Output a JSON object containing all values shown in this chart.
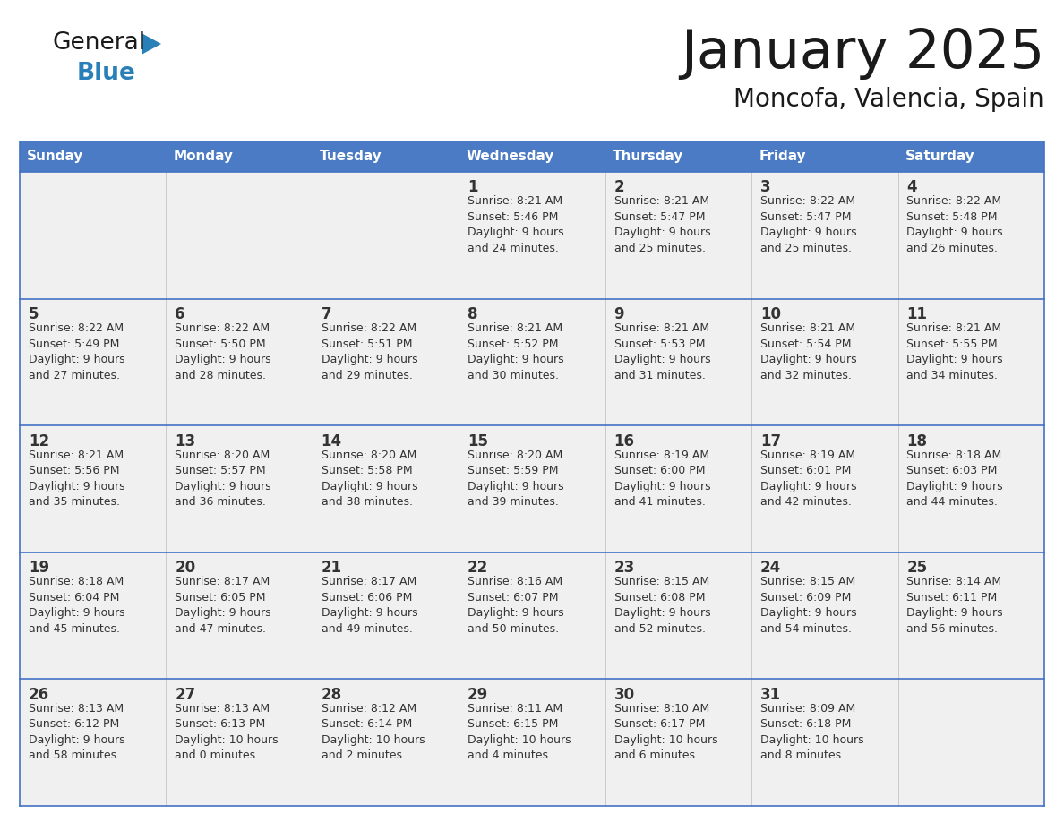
{
  "title": "January 2025",
  "subtitle": "Moncofa, Valencia, Spain",
  "header_bg_color": "#4A7BC4",
  "header_text_color": "#FFFFFF",
  "cell_bg": "#F0F0F0",
  "border_color": "#4472C4",
  "text_color": "#333333",
  "logo_text_color": "#1a1a1a",
  "logo_blue_color": "#2980B9",
  "days_of_week": [
    "Sunday",
    "Monday",
    "Tuesday",
    "Wednesday",
    "Thursday",
    "Friday",
    "Saturday"
  ],
  "weeks": [
    [
      {
        "day": "",
        "info": ""
      },
      {
        "day": "",
        "info": ""
      },
      {
        "day": "",
        "info": ""
      },
      {
        "day": "1",
        "info": "Sunrise: 8:21 AM\nSunset: 5:46 PM\nDaylight: 9 hours\nand 24 minutes."
      },
      {
        "day": "2",
        "info": "Sunrise: 8:21 AM\nSunset: 5:47 PM\nDaylight: 9 hours\nand 25 minutes."
      },
      {
        "day": "3",
        "info": "Sunrise: 8:22 AM\nSunset: 5:47 PM\nDaylight: 9 hours\nand 25 minutes."
      },
      {
        "day": "4",
        "info": "Sunrise: 8:22 AM\nSunset: 5:48 PM\nDaylight: 9 hours\nand 26 minutes."
      }
    ],
    [
      {
        "day": "5",
        "info": "Sunrise: 8:22 AM\nSunset: 5:49 PM\nDaylight: 9 hours\nand 27 minutes."
      },
      {
        "day": "6",
        "info": "Sunrise: 8:22 AM\nSunset: 5:50 PM\nDaylight: 9 hours\nand 28 minutes."
      },
      {
        "day": "7",
        "info": "Sunrise: 8:22 AM\nSunset: 5:51 PM\nDaylight: 9 hours\nand 29 minutes."
      },
      {
        "day": "8",
        "info": "Sunrise: 8:21 AM\nSunset: 5:52 PM\nDaylight: 9 hours\nand 30 minutes."
      },
      {
        "day": "9",
        "info": "Sunrise: 8:21 AM\nSunset: 5:53 PM\nDaylight: 9 hours\nand 31 minutes."
      },
      {
        "day": "10",
        "info": "Sunrise: 8:21 AM\nSunset: 5:54 PM\nDaylight: 9 hours\nand 32 minutes."
      },
      {
        "day": "11",
        "info": "Sunrise: 8:21 AM\nSunset: 5:55 PM\nDaylight: 9 hours\nand 34 minutes."
      }
    ],
    [
      {
        "day": "12",
        "info": "Sunrise: 8:21 AM\nSunset: 5:56 PM\nDaylight: 9 hours\nand 35 minutes."
      },
      {
        "day": "13",
        "info": "Sunrise: 8:20 AM\nSunset: 5:57 PM\nDaylight: 9 hours\nand 36 minutes."
      },
      {
        "day": "14",
        "info": "Sunrise: 8:20 AM\nSunset: 5:58 PM\nDaylight: 9 hours\nand 38 minutes."
      },
      {
        "day": "15",
        "info": "Sunrise: 8:20 AM\nSunset: 5:59 PM\nDaylight: 9 hours\nand 39 minutes."
      },
      {
        "day": "16",
        "info": "Sunrise: 8:19 AM\nSunset: 6:00 PM\nDaylight: 9 hours\nand 41 minutes."
      },
      {
        "day": "17",
        "info": "Sunrise: 8:19 AM\nSunset: 6:01 PM\nDaylight: 9 hours\nand 42 minutes."
      },
      {
        "day": "18",
        "info": "Sunrise: 8:18 AM\nSunset: 6:03 PM\nDaylight: 9 hours\nand 44 minutes."
      }
    ],
    [
      {
        "day": "19",
        "info": "Sunrise: 8:18 AM\nSunset: 6:04 PM\nDaylight: 9 hours\nand 45 minutes."
      },
      {
        "day": "20",
        "info": "Sunrise: 8:17 AM\nSunset: 6:05 PM\nDaylight: 9 hours\nand 47 minutes."
      },
      {
        "day": "21",
        "info": "Sunrise: 8:17 AM\nSunset: 6:06 PM\nDaylight: 9 hours\nand 49 minutes."
      },
      {
        "day": "22",
        "info": "Sunrise: 8:16 AM\nSunset: 6:07 PM\nDaylight: 9 hours\nand 50 minutes."
      },
      {
        "day": "23",
        "info": "Sunrise: 8:15 AM\nSunset: 6:08 PM\nDaylight: 9 hours\nand 52 minutes."
      },
      {
        "day": "24",
        "info": "Sunrise: 8:15 AM\nSunset: 6:09 PM\nDaylight: 9 hours\nand 54 minutes."
      },
      {
        "day": "25",
        "info": "Sunrise: 8:14 AM\nSunset: 6:11 PM\nDaylight: 9 hours\nand 56 minutes."
      }
    ],
    [
      {
        "day": "26",
        "info": "Sunrise: 8:13 AM\nSunset: 6:12 PM\nDaylight: 9 hours\nand 58 minutes."
      },
      {
        "day": "27",
        "info": "Sunrise: 8:13 AM\nSunset: 6:13 PM\nDaylight: 10 hours\nand 0 minutes."
      },
      {
        "day": "28",
        "info": "Sunrise: 8:12 AM\nSunset: 6:14 PM\nDaylight: 10 hours\nand 2 minutes."
      },
      {
        "day": "29",
        "info": "Sunrise: 8:11 AM\nSunset: 6:15 PM\nDaylight: 10 hours\nand 4 minutes."
      },
      {
        "day": "30",
        "info": "Sunrise: 8:10 AM\nSunset: 6:17 PM\nDaylight: 10 hours\nand 6 minutes."
      },
      {
        "day": "31",
        "info": "Sunrise: 8:09 AM\nSunset: 6:18 PM\nDaylight: 10 hours\nand 8 minutes."
      },
      {
        "day": "",
        "info": ""
      }
    ]
  ]
}
